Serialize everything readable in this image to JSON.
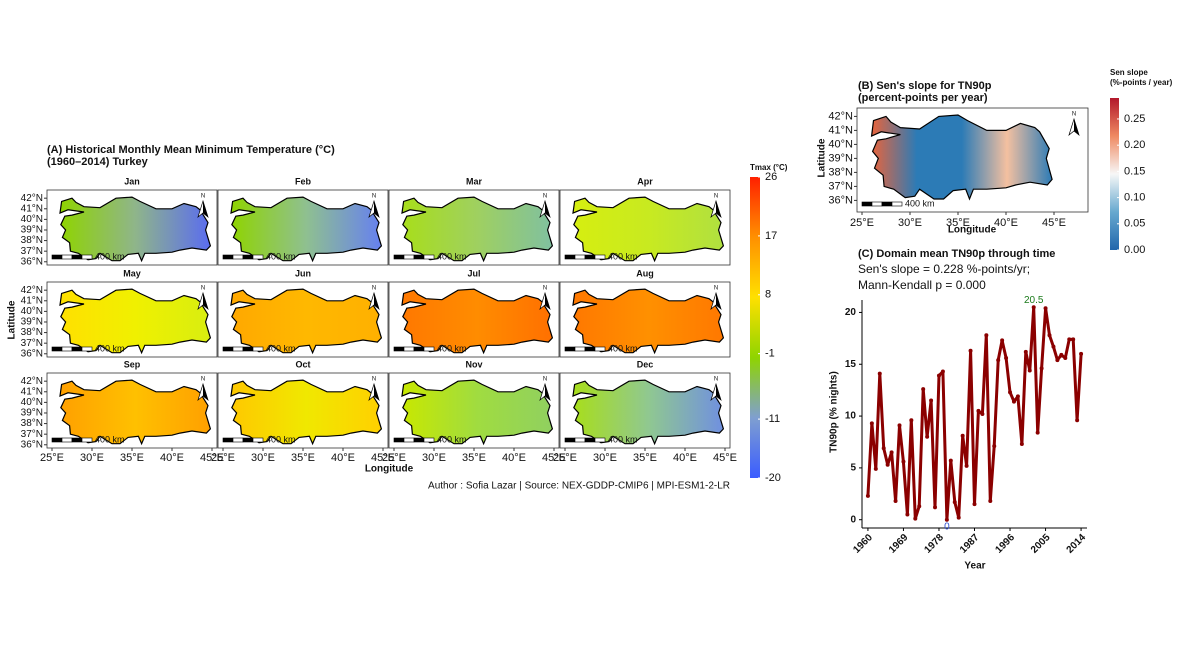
{
  "chart_data": [
    {
      "type": "map-grid",
      "title": [
        "(A) Historical Monthly Mean Minimum Temperature (°C)",
        "(1960–2014) Turkey"
      ],
      "xlabel": "Longitude",
      "ylabel": "Latitude",
      "panels": [
        {
          "name": "Jan",
          "colors": [
            "#8fd400",
            "#8fb58a",
            "#5a6cf0"
          ]
        },
        {
          "name": "Feb",
          "colors": [
            "#8fd400",
            "#8fc090",
            "#6680f0"
          ]
        },
        {
          "name": "Mar",
          "colors": [
            "#a8de1a",
            "#9fd060",
            "#80c0a0"
          ]
        },
        {
          "name": "Apr",
          "colors": [
            "#d6ee10",
            "#c8ea20",
            "#b0e040"
          ]
        },
        {
          "name": "May",
          "colors": [
            "#ffe000",
            "#f0f000",
            "#d8ee10"
          ]
        },
        {
          "name": "Jun",
          "colors": [
            "#ffa800",
            "#ffb800",
            "#ffb000"
          ]
        },
        {
          "name": "Jul",
          "colors": [
            "#ff7800",
            "#ff8c00",
            "#ff7000"
          ]
        },
        {
          "name": "Aug",
          "colors": [
            "#ff7800",
            "#ff9000",
            "#ff7800"
          ]
        },
        {
          "name": "Sep",
          "colors": [
            "#ffa000",
            "#ffc000",
            "#ffa000"
          ]
        },
        {
          "name": "Oct",
          "colors": [
            "#ffc800",
            "#f0e800",
            "#ffd000"
          ]
        },
        {
          "name": "Nov",
          "colors": [
            "#c8e800",
            "#a0dc40",
            "#90d060"
          ]
        },
        {
          "name": "Dec",
          "colors": [
            "#a8de1a",
            "#90c890",
            "#7090e0"
          ]
        }
      ],
      "xticks": [
        {
          "value": 25,
          "label": "25°E"
        },
        {
          "value": 30,
          "label": "30°E"
        },
        {
          "value": 35,
          "label": "35°E"
        },
        {
          "value": 40,
          "label": "40°E"
        },
        {
          "value": 45,
          "label": "45°E"
        }
      ],
      "yticks": [
        {
          "value": 42,
          "label": "42°N"
        },
        {
          "value": 41,
          "label": "41°N"
        },
        {
          "value": 40,
          "label": "40°N"
        },
        {
          "value": 39,
          "label": "39°N"
        },
        {
          "value": 38,
          "label": "38°N"
        },
        {
          "value": 37,
          "label": "37°N"
        },
        {
          "value": 36,
          "label": "36°N"
        }
      ],
      "scale_label": "400 km",
      "north_label": "N",
      "colorbar": {
        "title": "Tmax (°C)",
        "lim": [
          -20,
          26
        ],
        "ticks": [
          26,
          17,
          8,
          -1,
          -11,
          -20
        ],
        "colors": [
          "#3a5cff",
          "#7f9fd0",
          "#8fd400",
          "#ffe000",
          "#ff9000",
          "#ff2000"
        ]
      }
    },
    {
      "type": "map",
      "title": [
        "(B) Sen's slope for TN90p",
        "(percent-points per year)"
      ],
      "xlabel": "Longitude",
      "ylabel": "Latitude",
      "colors": [
        "#e8643c",
        "#2c7bb6",
        "#2c7bb6",
        "#f4c0a0",
        "#2c7bb6"
      ],
      "xticks": [
        {
          "value": 25,
          "label": "25°E"
        },
        {
          "value": 30,
          "label": "30°E"
        },
        {
          "value": 35,
          "label": "35°E"
        },
        {
          "value": 40,
          "label": "40°E"
        },
        {
          "value": 45,
          "label": "45°E"
        }
      ],
      "yticks": [
        {
          "value": 42,
          "label": "42°N"
        },
        {
          "value": 41,
          "label": "41°N"
        },
        {
          "value": 40,
          "label": "40°N"
        },
        {
          "value": 39,
          "label": "39°N"
        },
        {
          "value": 38,
          "label": "38°N"
        },
        {
          "value": 37,
          "label": "37°N"
        },
        {
          "value": 36,
          "label": "36°N"
        }
      ],
      "scale_label": "400 km",
      "north_label": "N",
      "colorbar": {
        "title": [
          "Sen slope",
          "(%-points / year)"
        ],
        "lim": [
          0,
          0.29
        ],
        "ticks": [
          {
            "value": 0,
            "label": "0.00"
          },
          0.05,
          {
            "value": 0.1,
            "label": "0.10"
          },
          0.15,
          {
            "value": 0.2,
            "label": "0.20"
          },
          0.25
        ],
        "colors": [
          "#2166ac",
          "#67a9cf",
          "#f7f7f7",
          "#ef8a62",
          "#b2182b"
        ]
      }
    },
    {
      "type": "line",
      "title": "(C) Domain mean TN90p through time",
      "subtitle": [
        "Sen's slope = 0.228 %-points/yr;",
        "Mann-Kendall p = 0.000"
      ],
      "xlabel": "Year",
      "ylabel": "TN90p (% nights)",
      "x": [
        1960,
        1961,
        1962,
        1963,
        1964,
        1965,
        1966,
        1967,
        1968,
        1969,
        1970,
        1971,
        1972,
        1973,
        1974,
        1975,
        1976,
        1977,
        1978,
        1979,
        1980,
        1981,
        1982,
        1983,
        1984,
        1985,
        1986,
        1987,
        1988,
        1989,
        1990,
        1991,
        1992,
        1993,
        1994,
        1995,
        1996,
        1997,
        1998,
        1999,
        2000,
        2001,
        2002,
        2003,
        2004,
        2005,
        2006,
        2007,
        2008,
        2009,
        2010,
        2011,
        2012,
        2013,
        2014
      ],
      "series": [
        {
          "name": "TN90p",
          "color": "#8b0000",
          "values": [
            2.3,
            9.3,
            4.9,
            14.1,
            6.9,
            5.3,
            6.5,
            1.8,
            9.1,
            5.6,
            0.5,
            9.6,
            0.1,
            1.3,
            12.6,
            8.0,
            11.5,
            1.2,
            13.9,
            14.3,
            0,
            5.7,
            1.7,
            0.2,
            8.1,
            5.2,
            16.3,
            1.5,
            10.5,
            10.2,
            17.8,
            1.8,
            7.1,
            15.4,
            17.3,
            15.6,
            12.3,
            11.4,
            11.9,
            7.3,
            16.2,
            14.4,
            20.5,
            8.4,
            14.6,
            20.4,
            17.8,
            16.7,
            15.4,
            15.9,
            15.6,
            17.4,
            17.4,
            9.6,
            16.0
          ]
        }
      ],
      "annotations": [
        {
          "label": "20.5",
          "x": 2002,
          "value": 20.5,
          "color": "#1a7a1a"
        },
        {
          "label": "0",
          "x": 1980,
          "value": 0,
          "color": "#3050d0"
        }
      ],
      "xlim": [
        1958.5,
        2015.5
      ],
      "ylim": [
        -0.8,
        21.2
      ],
      "xticks": [
        1960,
        1969,
        1978,
        1987,
        1996,
        2005,
        2014
      ],
      "yticks": [
        0,
        5,
        10,
        15,
        20
      ]
    }
  ],
  "caption": "Author : Sofia Lazar | Source: NEX-GDDP-CMIP6 | MPI-ESM1-2-LR"
}
